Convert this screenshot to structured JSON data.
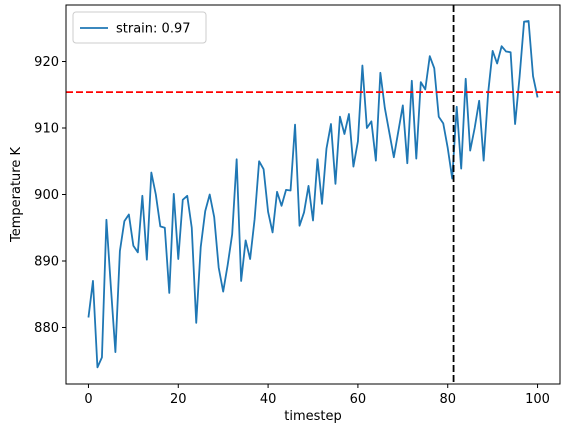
{
  "chart_data": {
    "type": "line",
    "xlabel": "timestep",
    "ylabel": "Temperature K",
    "xlim": [
      -5,
      105
    ],
    "ylim": [
      871.5,
      928.5
    ],
    "xticks": [
      0,
      20,
      40,
      60,
      80,
      100
    ],
    "yticks": [
      880,
      890,
      900,
      910,
      920
    ],
    "grid": false,
    "legend_placement": "top-left",
    "series": [
      {
        "name": "strain: 0.97",
        "color": "#1f77b4",
        "x": [
          0,
          1,
          2,
          3,
          4,
          5,
          6,
          7,
          8,
          9,
          10,
          11,
          12,
          13,
          14,
          15,
          16,
          17,
          18,
          19,
          20,
          21,
          22,
          23,
          24,
          25,
          26,
          27,
          28,
          29,
          30,
          31,
          32,
          33,
          34,
          35,
          36,
          37,
          38,
          39,
          40,
          41,
          42,
          43,
          44,
          45,
          46,
          47,
          48,
          49,
          50,
          51,
          52,
          53,
          54,
          55,
          56,
          57,
          58,
          59,
          60,
          61,
          62,
          63,
          64,
          65,
          66,
          67,
          68,
          69,
          70,
          71,
          72,
          73,
          74,
          75,
          76,
          77,
          78,
          79,
          80,
          81,
          82,
          83,
          84,
          85,
          86,
          87,
          88,
          89,
          90,
          91,
          92,
          93,
          94,
          95,
          96,
          97,
          98,
          99,
          100
        ],
        "y": [
          881.5,
          887.0,
          874.0,
          875.5,
          896.2,
          886.0,
          876.3,
          891.5,
          896.0,
          897.0,
          892.3,
          891.3,
          899.8,
          890.2,
          903.3,
          900.0,
          895.2,
          895.0,
          885.2,
          900.1,
          890.3,
          899.2,
          899.8,
          895.0,
          880.7,
          892.1,
          897.5,
          900.0,
          896.6,
          889.0,
          885.4,
          889.4,
          894.0,
          905.3,
          887.0,
          893.1,
          890.3,
          896.3,
          905.0,
          903.8,
          897.4,
          894.3,
          900.4,
          898.3,
          900.7,
          900.6,
          910.5,
          895.3,
          897.3,
          901.3,
          896.1,
          905.3,
          898.6,
          906.9,
          910.6,
          901.6,
          911.7,
          909.1,
          912.1,
          904.2,
          908.0,
          919.4,
          910.0,
          911.0,
          905.1,
          918.3,
          913.0,
          909.3,
          905.6,
          909.5,
          913.4,
          904.7,
          917.1,
          905.4,
          916.9,
          915.8,
          920.8,
          919.0,
          911.7,
          910.7,
          907.0,
          902.4,
          913.2,
          903.9,
          917.4,
          906.6,
          910.0,
          914.1,
          905.1,
          915.3,
          921.6,
          919.7,
          922.3,
          921.5,
          921.4,
          910.6,
          917.7,
          926.0,
          926.1,
          917.8,
          914.6
        ]
      }
    ],
    "annotations": [
      {
        "type": "hline",
        "y": 915.4,
        "color": "#ff0000",
        "style": "dashed"
      },
      {
        "type": "vline",
        "x": 81.3,
        "color": "#000000",
        "style": "dashed"
      }
    ]
  }
}
